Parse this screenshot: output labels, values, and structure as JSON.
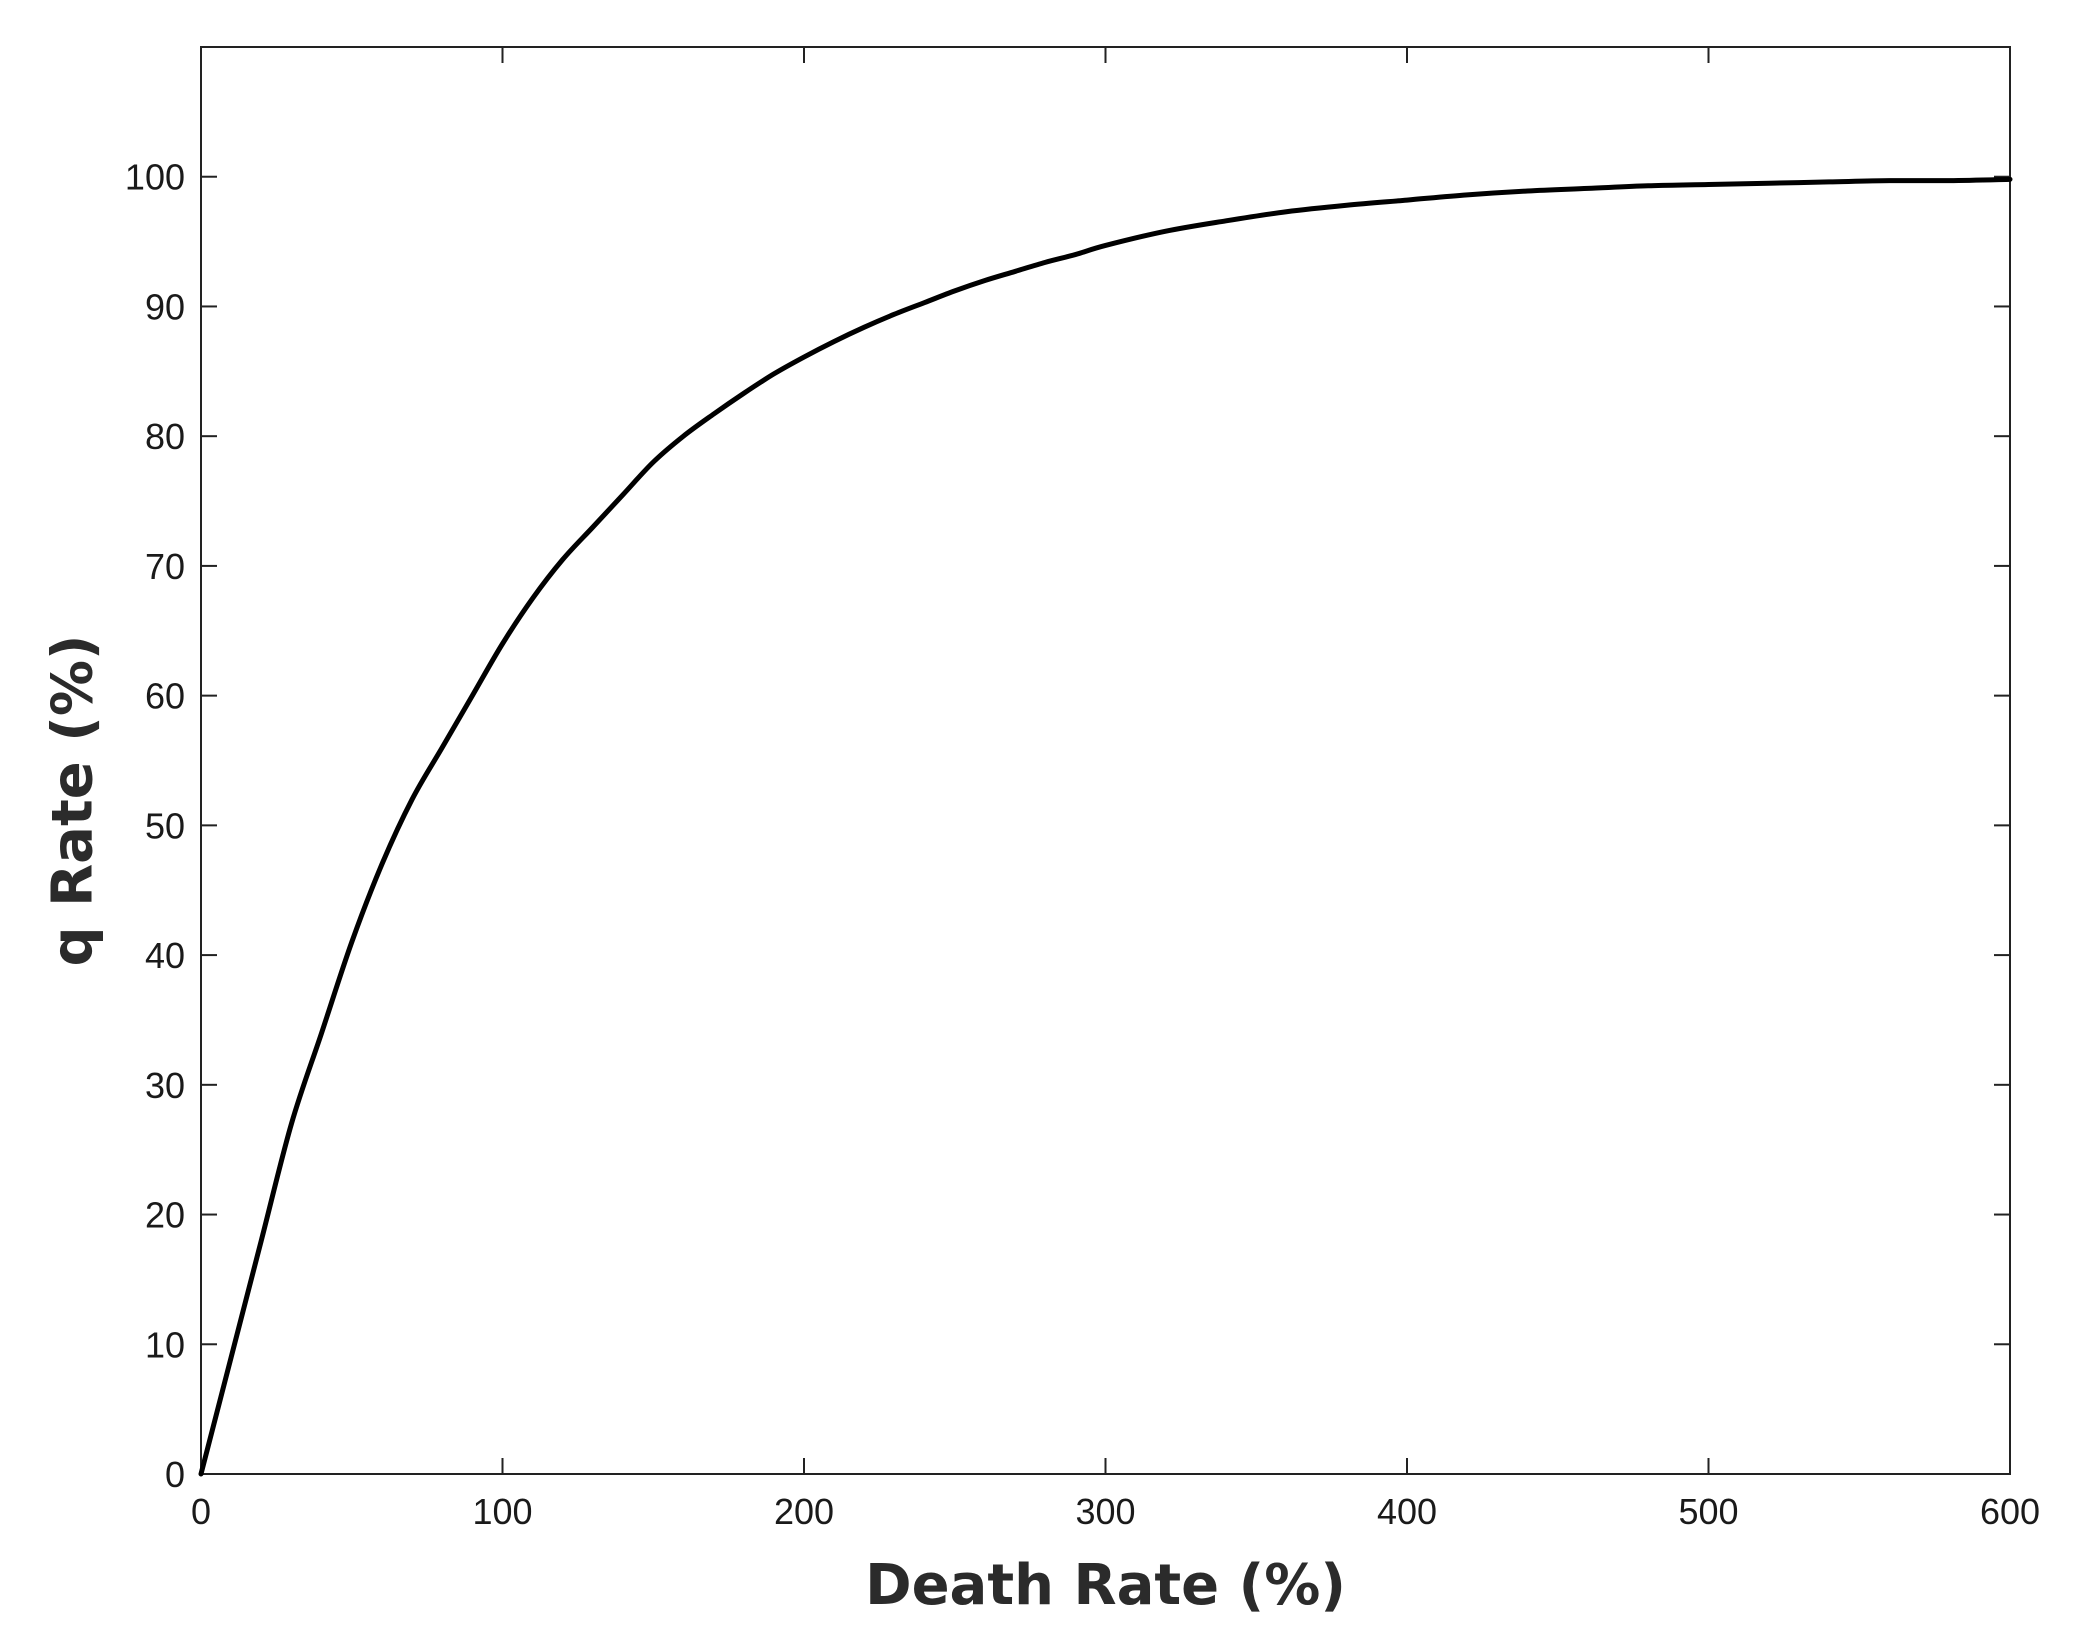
{
  "chart_data": {
    "type": "line",
    "title": "",
    "xlabel": "Death Rate (%)",
    "ylabel": "q Rate (%)",
    "xlim": [
      0,
      600
    ],
    "ylim": [
      0,
      100
    ],
    "x_ticks": [
      0,
      100,
      200,
      300,
      400,
      500,
      600
    ],
    "y_ticks": [
      0,
      10,
      20,
      30,
      40,
      50,
      60,
      70,
      80,
      90,
      100
    ],
    "grid": false,
    "legend": "none",
    "line_color": "#000000",
    "series": [
      {
        "x": [
          0,
          10,
          20,
          30,
          40,
          50,
          60,
          70,
          80,
          90,
          100,
          110,
          120,
          130,
          140,
          150,
          160,
          170,
          180,
          190,
          200,
          210,
          220,
          230,
          240,
          250,
          260,
          270,
          280,
          290,
          300,
          320,
          340,
          360,
          380,
          400,
          420,
          440,
          460,
          480,
          500,
          520,
          540,
          560,
          580,
          600
        ],
        "y": [
          0,
          9,
          18,
          27,
          34,
          41,
          47,
          52,
          56,
          60,
          64,
          67.5,
          70.5,
          73,
          75.5,
          78,
          80,
          81.7,
          83.3,
          84.8,
          86.1,
          87.3,
          88.4,
          89.4,
          90.3,
          91.2,
          92,
          92.7,
          93.4,
          94,
          94.7,
          95.8,
          96.6,
          97.3,
          97.8,
          98.2,
          98.6,
          98.9,
          99.1,
          99.3,
          99.4,
          99.5,
          99.6,
          99.7,
          99.7,
          99.8
        ]
      }
    ]
  }
}
